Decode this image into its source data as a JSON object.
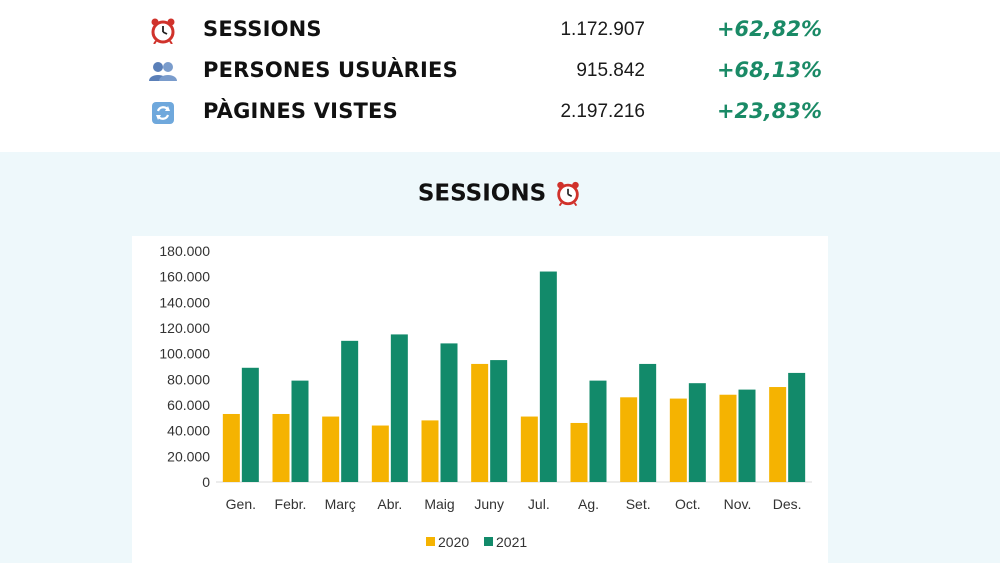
{
  "stats": [
    {
      "icon": "alarm-clock-icon",
      "label": "SESSIONS",
      "value": "1.172.907",
      "change": "+62,82%"
    },
    {
      "icon": "users-icon",
      "label": "PERSONES USUÀRIES",
      "value": "915.842",
      "change": "+68,13%"
    },
    {
      "icon": "refresh-icon",
      "label": "PÀGINES VISTES",
      "value": "2.197.216",
      "change": "+23,83%"
    }
  ],
  "colors": {
    "change": "#1a8a66",
    "series_2020": "#f5b301",
    "series_2021": "#128a6a"
  },
  "chart_data": {
    "type": "bar",
    "title": "SESSIONS",
    "title_icon": "alarm-clock-icon",
    "categories": [
      "Gen.",
      "Febr.",
      "Març",
      "Abr.",
      "Maig",
      "Juny",
      "Jul.",
      "Ag.",
      "Set.",
      "Oct.",
      "Nov.",
      "Des."
    ],
    "series": [
      {
        "name": "2020",
        "color": "#f5b301",
        "values": [
          53000,
          53000,
          51000,
          44000,
          48000,
          92000,
          51000,
          46000,
          66000,
          65000,
          68000,
          74000
        ]
      },
      {
        "name": "2021",
        "color": "#128a6a",
        "values": [
          89000,
          79000,
          110000,
          115000,
          108000,
          95000,
          164000,
          79000,
          92000,
          77000,
          72000,
          85000
        ]
      }
    ],
    "ylim": [
      0,
      180000
    ],
    "yticks": [
      "0",
      "20.000",
      "40.000",
      "60.000",
      "80.000",
      "100.000",
      "120.000",
      "140.000",
      "160.000",
      "180.000"
    ],
    "ytick_values": [
      0,
      20000,
      40000,
      60000,
      80000,
      100000,
      120000,
      140000,
      160000,
      180000
    ],
    "grid": false,
    "legend": "bottom-center",
    "xlabel": "",
    "ylabel": ""
  }
}
